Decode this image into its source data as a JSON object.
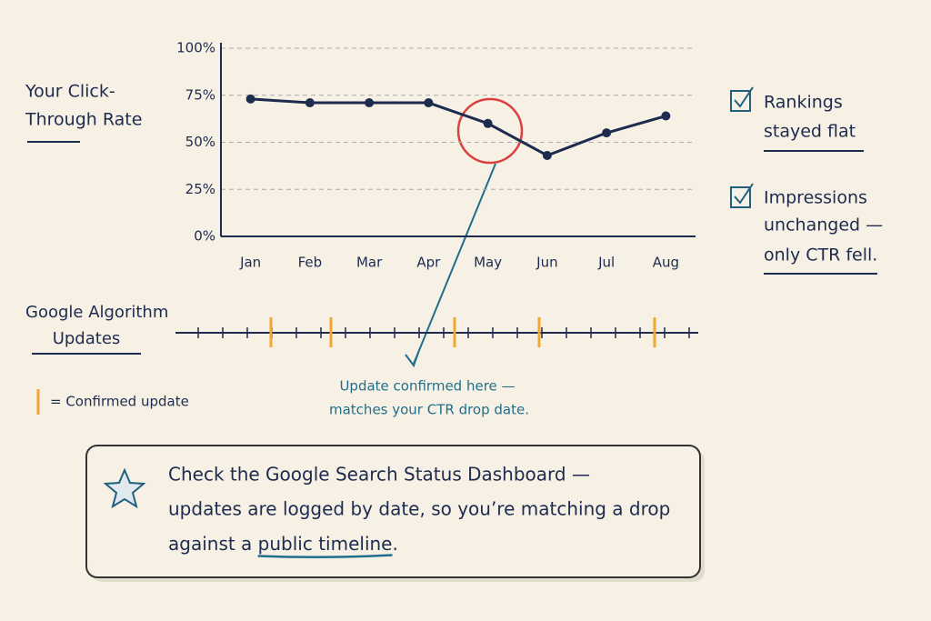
{
  "chart_data": {
    "type": "line",
    "y_label_lines": [
      "Your Click-",
      "Through Rate"
    ],
    "categories": [
      "Jan",
      "Feb",
      "Mar",
      "Apr",
      "May",
      "Jun",
      "Jul",
      "Aug"
    ],
    "values": [
      73,
      71,
      71,
      71,
      60,
      43,
      55,
      64
    ],
    "color": "#1d2b4f",
    "ylim": [
      0,
      100
    ],
    "yticks": [
      {
        "value": 0,
        "label": "0%"
      },
      {
        "value": 25,
        "label": "25%"
      },
      {
        "value": 50,
        "label": "50%"
      },
      {
        "value": 75,
        "label": "75%"
      },
      {
        "value": 100,
        "label": "100%"
      }
    ],
    "grid": true
  },
  "checklist": [
    {
      "lines": [
        "Rankings",
        "stayed flat"
      ]
    },
    {
      "lines": [
        "Impressions",
        "unchanged —",
        "only CTR fell."
      ]
    }
  ],
  "timeline": {
    "label_lines": [
      "Google Algorithm",
      "Updates"
    ],
    "legend": "= Confirmed update"
  },
  "annotation": {
    "lines": [
      "Update confirmed here —",
      "matches your CTR drop date."
    ]
  },
  "callout": {
    "lines": [
      "Check the Google Search Status Dashboard —",
      "updates are logged by date, so you’re matching a drop",
      "against a "
    ],
    "highlight": "public timeline",
    "end": "."
  }
}
